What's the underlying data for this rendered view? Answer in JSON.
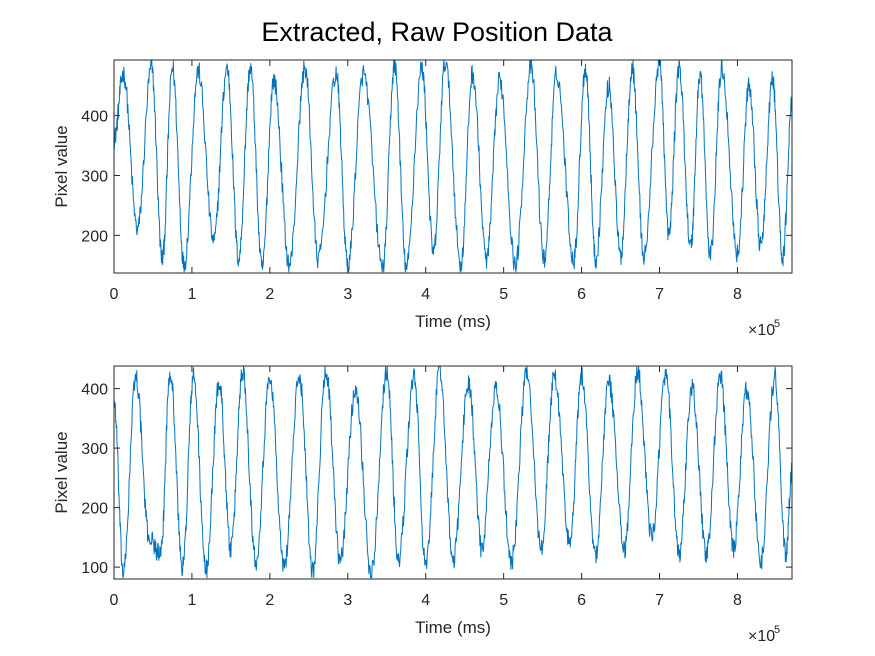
{
  "figure": {
    "title": "Extracted, Raw Position Data"
  },
  "chart_data": [
    {
      "type": "line",
      "xlabel": "Time (ms)",
      "ylabel": "Pixel value",
      "x_multiplier_label": "×10",
      "x_multiplier_exponent": "5",
      "xlim": [
        0,
        870000
      ],
      "ylim": [
        137,
        493
      ],
      "xticks": [
        0,
        1,
        2,
        3,
        4,
        5,
        6,
        7,
        8
      ],
      "yticks": [
        200,
        300,
        400
      ],
      "grid": false,
      "line_color": "#0072BD",
      "series": [
        {
          "x": [
            0,
            12000,
            30000,
            48000,
            62000,
            75000,
            90000,
            108000,
            128000,
            145000,
            160000,
            175000,
            190000,
            205000,
            225000,
            245000,
            262000,
            285000,
            300000,
            320000,
            345000,
            360000,
            375000,
            395000,
            410000,
            425000,
            445000,
            460000,
            478000,
            495000,
            515000,
            535000,
            552000,
            568000,
            590000,
            605000,
            618000,
            635000,
            650000,
            665000,
            680000,
            700000,
            712000,
            725000,
            740000,
            752000,
            765000,
            780000,
            800000,
            815000,
            830000,
            845000,
            858000,
            870000
          ],
          "y": [
            360,
            470,
            210,
            480,
            160,
            480,
            150,
            475,
            190,
            480,
            160,
            480,
            145,
            460,
            150,
            480,
            160,
            470,
            150,
            470,
            145,
            485,
            145,
            480,
            170,
            490,
            150,
            470,
            160,
            460,
            150,
            480,
            160,
            470,
            160,
            480,
            160,
            450,
            165,
            480,
            165,
            490,
            200,
            480,
            180,
            470,
            165,
            480,
            170,
            450,
            180,
            460,
            160,
            420
          ]
        }
      ]
    },
    {
      "type": "line",
      "xlabel": "Time (ms)",
      "ylabel": "Pixel value",
      "x_multiplier_label": "×10",
      "x_multiplier_exponent": "5",
      "xlim": [
        0,
        870000
      ],
      "ylim": [
        80,
        438
      ],
      "xticks": [
        0,
        1,
        2,
        3,
        4,
        5,
        6,
        7,
        8
      ],
      "yticks": [
        100,
        200,
        300,
        400
      ],
      "grid": false,
      "line_color": "#0072BD",
      "series": [
        {
          "x": [
            0,
            12000,
            28000,
            45000,
            60000,
            72000,
            88000,
            102000,
            118000,
            135000,
            150000,
            165000,
            182000,
            200000,
            218000,
            238000,
            255000,
            272000,
            290000,
            310000,
            330000,
            350000,
            365000,
            385000,
            400000,
            418000,
            435000,
            455000,
            472000,
            490000,
            510000,
            530000,
            548000,
            565000,
            585000,
            600000,
            618000,
            635000,
            655000,
            672000,
            690000,
            708000,
            725000,
            742000,
            760000,
            778000,
            795000,
            812000,
            830000,
            848000,
            862000,
            870000
          ],
          "y": [
            380,
            90,
            420,
            150,
            120,
            430,
            100,
            420,
            95,
            410,
            130,
            430,
            110,
            420,
            100,
            420,
            95,
            430,
            110,
            400,
            90,
            430,
            110,
            420,
            100,
            430,
            110,
            410,
            130,
            400,
            110,
            430,
            130,
            420,
            140,
            420,
            120,
            410,
            130,
            430,
            150,
            420,
            120,
            400,
            120,
            420,
            130,
            400,
            110,
            420,
            120,
            260
          ]
        }
      ]
    }
  ]
}
